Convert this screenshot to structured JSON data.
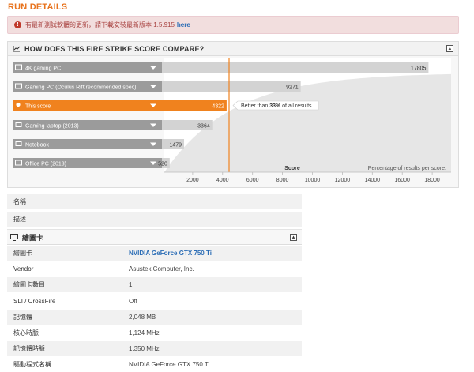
{
  "page_title": "RUN DETAILS",
  "alert": {
    "text": "有最新測試軟體的更新，請下載安裝最新版本 1.5.915",
    "link": "here",
    "icon": "exclamation-icon"
  },
  "compare": {
    "title": "HOW DOES THIS FIRE STRIKE SCORE COMPARE?",
    "annotation": "Better than 33% of all results",
    "annotation_pre": "Better than ",
    "annotation_pct": "33%",
    "annotation_post": " of all results",
    "score_axis_label": "Score",
    "percentage_label": "Percentage of results per score.",
    "accent": "#f0821e"
  },
  "chart_data": {
    "type": "bar",
    "orientation": "horizontal",
    "categories": [
      "4K gaming PC",
      "Gaming PC (Oculus Rift recommended spec)",
      "This score",
      "Gaming laptop (2013)",
      "Notebook",
      "Office PC (2013)"
    ],
    "values": [
      17805,
      9271,
      4322,
      3364,
      1479,
      520
    ],
    "highlight": "This score",
    "category_icons": [
      "monitor-icon",
      "monitor-icon",
      "lightbulb-icon",
      "laptop-icon",
      "laptop-icon",
      "monitor-icon"
    ],
    "x_ticks": [
      2000,
      4000,
      6000,
      8000,
      10000,
      12000,
      14000,
      16000,
      18000
    ],
    "xlim": [
      0,
      19000
    ],
    "xlabel": "Score",
    "marker_value": 4322,
    "colors": {
      "bar": "#d3d3d3",
      "label": "#9b9b9b",
      "highlight": "#f0821e",
      "curve": "#e6e6e6"
    }
  },
  "info": {
    "rows_top": [
      {
        "key": "名稱",
        "value": ""
      },
      {
        "key": "描述",
        "value": ""
      }
    ],
    "gpu_section_title": "繪圖卡",
    "gpu_rows": [
      {
        "key": "繪圖卡",
        "value": "NVIDIA GeForce GTX 750 Ti"
      },
      {
        "key": "Vendor",
        "value": "Asustek Computer, Inc."
      },
      {
        "key": "繪圖卡數目",
        "value": "1"
      },
      {
        "key": "SLI / CrossFire",
        "value": "Off"
      },
      {
        "key": "記憶體",
        "value": "2,048 MB"
      },
      {
        "key": "核心時脈",
        "value": "1,124 MHz"
      },
      {
        "key": "記憶體時脈",
        "value": "1,350 MHz"
      },
      {
        "key": "驅動程式名稱",
        "value": "NVIDIA GeForce GTX 750 Ti"
      }
    ]
  }
}
